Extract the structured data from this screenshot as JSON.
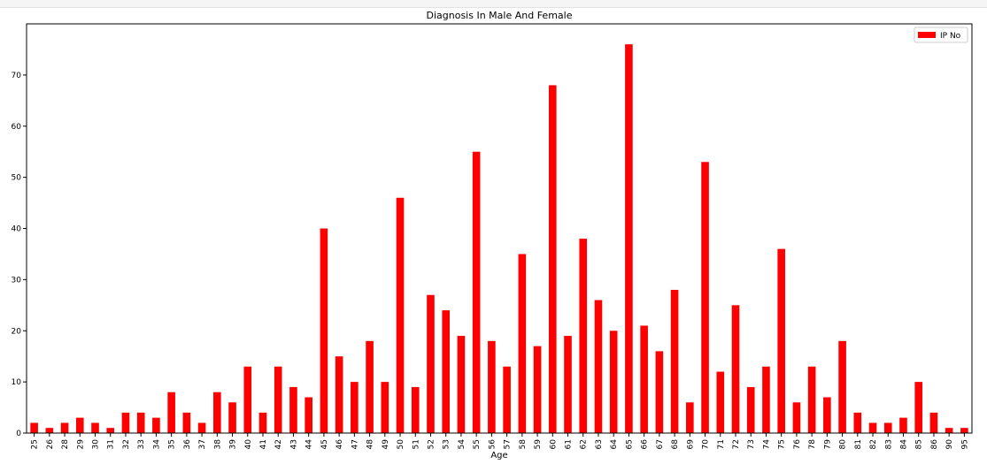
{
  "chart_data": {
    "type": "bar",
    "title": "Diagnosis In Male And Female",
    "xlabel": "Age",
    "ylabel": "",
    "ylim": [
      0,
      80
    ],
    "yticks": [
      0,
      10,
      20,
      30,
      40,
      50,
      60,
      70
    ],
    "grid": false,
    "legend_position": "top-right",
    "categories": [
      "25",
      "26",
      "28",
      "29",
      "30",
      "31",
      "32",
      "33",
      "34",
      "35",
      "36",
      "37",
      "38",
      "39",
      "40",
      "41",
      "42",
      "43",
      "44",
      "45",
      "46",
      "47",
      "48",
      "49",
      "50",
      "51",
      "52",
      "53",
      "54",
      "55",
      "56",
      "57",
      "58",
      "59",
      "60",
      "61",
      "62",
      "63",
      "64",
      "65",
      "66",
      "67",
      "68",
      "69",
      "70",
      "71",
      "72",
      "73",
      "74",
      "75",
      "76",
      "78",
      "79",
      "80",
      "81",
      "82",
      "83",
      "84",
      "85",
      "86",
      "90",
      "95"
    ],
    "series": [
      {
        "name": "IP No",
        "color": "#ff0000",
        "values": [
          2,
          1,
          2,
          3,
          2,
          1,
          4,
          4,
          3,
          8,
          4,
          2,
          8,
          6,
          13,
          4,
          13,
          9,
          7,
          40,
          15,
          10,
          18,
          10,
          46,
          9,
          27,
          24,
          19,
          55,
          18,
          13,
          35,
          17,
          68,
          19,
          38,
          26,
          20,
          76,
          21,
          16,
          28,
          6,
          53,
          12,
          25,
          9,
          13,
          36,
          6,
          13,
          7,
          18,
          4,
          2,
          2,
          3,
          10,
          4,
          1,
          1
        ]
      }
    ]
  }
}
